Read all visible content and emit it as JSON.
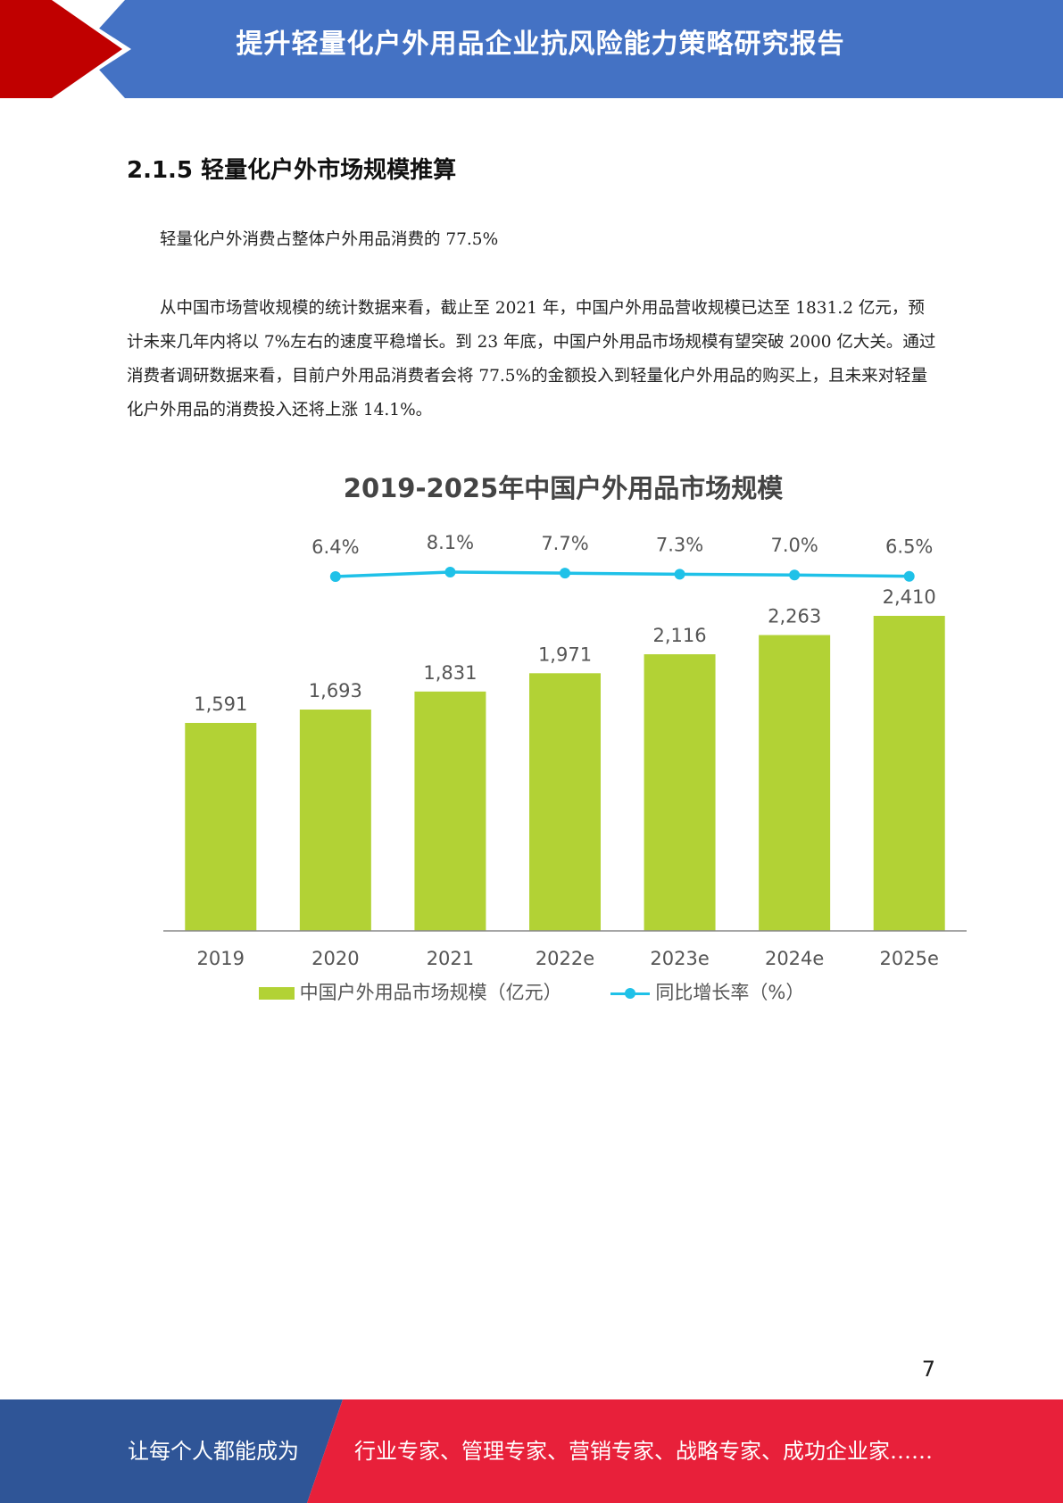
{
  "header": {
    "title": "提升轻量化户外用品企业抗风险能力策略研究报告",
    "colors": {
      "band": "#4472c4",
      "accent": "#c00000"
    }
  },
  "section": {
    "heading": "2.1.5 轻量化户外市场规模推算",
    "paragraphs": [
      "轻量化户外消费占整体户外用品消费的 77.5%",
      "从中国市场营收规模的统计数据来看，截止至 2021 年，中国户外用品营收规模已达至 1831.2 亿元，预计未来几年内将以 7%左右的速度平稳增长。到 23 年底，中国户外用品市场规模有望突破 2000 亿大关。通过消费者调研数据来看，目前户外用品消费者会将 77.5%的金额投入到轻量化户外用品的购买上，且未来对轻量化户外用品的消费投入还将上涨 14.1%。"
    ]
  },
  "chart_data": {
    "type": "bar",
    "title": "2019-2025年中国户外用品市场规模",
    "categories": [
      "2019",
      "2020",
      "2021",
      "2022e",
      "2023e",
      "2024e",
      "2025e"
    ],
    "series": [
      {
        "name": "中国户外用品市场规模（亿元）",
        "type": "bar",
        "color": "#b2d235",
        "values": [
          1591,
          1693,
          1831,
          1971,
          2116,
          2263,
          2410
        ],
        "labels": [
          "1,591",
          "1,693",
          "1,831",
          "1,971",
          "2,116",
          "2,263",
          "2,410"
        ]
      },
      {
        "name": "同比增长率（%）",
        "type": "line",
        "color": "#1fc1e8",
        "values": [
          null,
          6.4,
          8.1,
          7.7,
          7.3,
          7.0,
          6.5
        ],
        "labels": [
          null,
          "6.4%",
          "8.1%",
          "7.7%",
          "7.3%",
          "7.0%",
          "6.5%"
        ]
      }
    ],
    "ylim": [
      0,
      2410
    ],
    "grid": false,
    "legend_position": "bottom"
  },
  "page_number": "7",
  "footer": {
    "left_text": "让每个人都能成为",
    "right_text": "行业专家、管理专家、营销专家、战略专家、成功企业家……",
    "colors": {
      "left": "#2f5597",
      "right": "#e8203a"
    }
  }
}
